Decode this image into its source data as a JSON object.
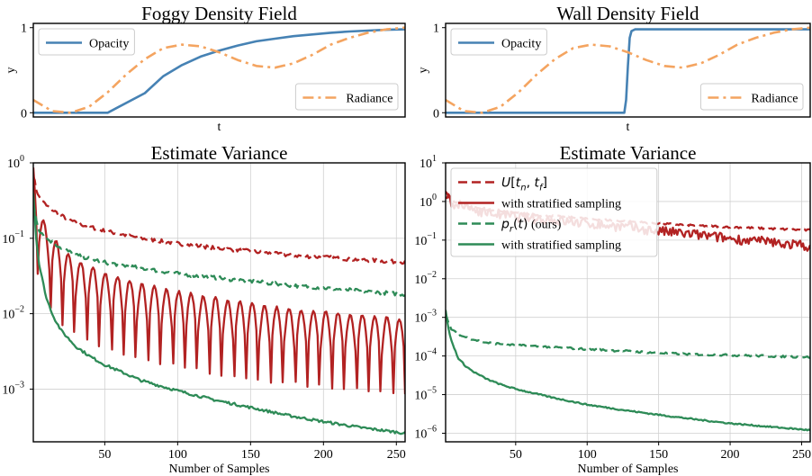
{
  "chart_data": [
    {
      "id": "foggy",
      "type": "line",
      "title": "Foggy Density Field",
      "xlabel": "t",
      "ylabel": "y",
      "xlim": [
        0,
        1
      ],
      "ylim": [
        -0.05,
        1.05
      ],
      "yticks": [
        "0",
        "1"
      ],
      "xticks": [],
      "grid": false,
      "legends": [
        {
          "placement": "upper-left",
          "entries": [
            {
              "series": 0,
              "label": "Opacity"
            }
          ]
        },
        {
          "placement": "lower-right",
          "entries": [
            {
              "series": 1,
              "label": "Radiance"
            }
          ]
        }
      ],
      "series": [
        {
          "name": "Opacity",
          "color": "#4682b4",
          "style": "solid",
          "x": [
            0,
            0.1,
            0.2,
            0.3,
            0.35,
            0.4,
            0.45,
            0.5,
            0.55,
            0.6,
            0.65,
            0.7,
            0.75,
            0.8,
            0.85,
            0.9,
            0.95,
            1.0
          ],
          "y": [
            0,
            0,
            0,
            0.23,
            0.43,
            0.56,
            0.66,
            0.73,
            0.79,
            0.84,
            0.87,
            0.9,
            0.92,
            0.94,
            0.955,
            0.965,
            0.975,
            0.98
          ]
        },
        {
          "name": "Radiance",
          "color": "#f4a460",
          "style": "dashdot",
          "x": [
            0,
            0.05,
            0.1,
            0.15,
            0.2,
            0.25,
            0.3,
            0.35,
            0.4,
            0.45,
            0.5,
            0.55,
            0.6,
            0.65,
            0.7,
            0.75,
            0.8,
            0.85,
            0.9,
            0.95,
            1.0
          ],
          "y": [
            0.15,
            0.02,
            0.0,
            0.07,
            0.24,
            0.45,
            0.63,
            0.76,
            0.8,
            0.78,
            0.71,
            0.62,
            0.55,
            0.53,
            0.58,
            0.68,
            0.8,
            0.88,
            0.94,
            0.98,
            1.0
          ]
        }
      ]
    },
    {
      "id": "wall",
      "type": "line",
      "title": "Wall Density Field",
      "xlabel": "t",
      "ylabel": "y",
      "xlim": [
        0,
        1
      ],
      "ylim": [
        -0.05,
        1.05
      ],
      "yticks": [
        "0",
        "1"
      ],
      "xticks": [],
      "grid": false,
      "legends": [
        {
          "placement": "upper-left",
          "entries": [
            {
              "series": 0,
              "label": "Opacity"
            }
          ]
        },
        {
          "placement": "lower-right",
          "entries": [
            {
              "series": 1,
              "label": "Radiance"
            }
          ]
        }
      ],
      "series": [
        {
          "name": "Opacity",
          "color": "#4682b4",
          "style": "solid",
          "x": [
            0,
            0.49,
            0.495,
            0.5,
            0.505,
            0.51,
            0.52,
            1.0
          ],
          "y": [
            0,
            0,
            0.15,
            0.55,
            0.88,
            0.96,
            0.98,
            0.98
          ]
        },
        {
          "name": "Radiance",
          "color": "#f4a460",
          "style": "dashdot",
          "x": [
            0,
            0.05,
            0.1,
            0.15,
            0.2,
            0.25,
            0.3,
            0.35,
            0.4,
            0.45,
            0.5,
            0.55,
            0.6,
            0.65,
            0.7,
            0.75,
            0.8,
            0.85,
            0.9,
            0.95,
            1.0
          ],
          "y": [
            0.15,
            0.02,
            0.0,
            0.07,
            0.24,
            0.45,
            0.63,
            0.76,
            0.8,
            0.78,
            0.71,
            0.62,
            0.55,
            0.53,
            0.58,
            0.68,
            0.8,
            0.88,
            0.94,
            0.98,
            1.0
          ]
        }
      ]
    },
    {
      "id": "var-foggy",
      "type": "line",
      "title": "Estimate Variance",
      "xlabel": "Number of Samples",
      "ylabel": "",
      "yscale": "log",
      "xlim": [
        1,
        256
      ],
      "ylim": [
        0.0002,
        1.0
      ],
      "xticks": [
        50,
        100,
        150,
        200,
        250
      ],
      "yticks": [
        {
          "exp": 0,
          "v": 1
        },
        {
          "exp": -1,
          "v": 0.1
        },
        {
          "exp": -2,
          "v": 0.01
        },
        {
          "exp": -3,
          "v": 0.001
        }
      ],
      "grid": true,
      "series": [
        {
          "name": "U[t_n, t_f]",
          "color": "#b22222",
          "style": "dashed",
          "x": [
            1,
            3,
            5,
            10,
            20,
            30,
            50,
            75,
            100,
            125,
            150,
            175,
            200,
            225,
            256
          ],
          "y": [
            0.7,
            0.45,
            0.35,
            0.27,
            0.2,
            0.16,
            0.125,
            0.1,
            0.085,
            0.075,
            0.067,
            0.06,
            0.056,
            0.052,
            0.048
          ]
        },
        {
          "name": "with stratified sampling",
          "color": "#b22222",
          "style": "solid",
          "x": [
            1,
            3,
            5,
            10,
            20,
            30,
            50,
            75,
            100,
            125,
            150,
            175,
            200,
            225,
            256
          ],
          "y": [
            0.75,
            0.35,
            0.2,
            0.11,
            0.06,
            0.042,
            0.028,
            0.02,
            0.016,
            0.013,
            0.011,
            0.0095,
            0.0085,
            0.0078,
            0.0068
          ]
        },
        {
          "name": "p_r(t) (ours)",
          "color": "#2e8b57",
          "style": "dashed",
          "x": [
            1,
            3,
            5,
            10,
            20,
            30,
            50,
            75,
            100,
            125,
            150,
            175,
            200,
            225,
            256
          ],
          "y": [
            0.3,
            0.18,
            0.13,
            0.1,
            0.075,
            0.06,
            0.048,
            0.04,
            0.034,
            0.03,
            0.027,
            0.024,
            0.022,
            0.02,
            0.018
          ]
        },
        {
          "name": "with stratified sampling",
          "color": "#2e8b57",
          "style": "solid",
          "x": [
            1,
            3,
            5,
            10,
            15,
            20,
            30,
            40,
            50,
            75,
            100,
            125,
            150,
            175,
            200,
            225,
            256
          ],
          "y": [
            0.4,
            0.1,
            0.045,
            0.016,
            0.009,
            0.006,
            0.0037,
            0.0027,
            0.0021,
            0.0013,
            0.00095,
            0.00072,
            0.00057,
            0.00045,
            0.00037,
            0.00031,
            0.00026
          ]
        }
      ]
    },
    {
      "id": "var-wall",
      "type": "line",
      "title": "Estimate Variance",
      "xlabel": "Number of Samples",
      "ylabel": "",
      "yscale": "log",
      "xlim": [
        1,
        256
      ],
      "ylim": [
        6e-07,
        10
      ],
      "xticks": [
        50,
        100,
        150,
        200,
        250
      ],
      "yticks": [
        {
          "exp": 1,
          "v": 10
        },
        {
          "exp": 0,
          "v": 1
        },
        {
          "exp": -1,
          "v": 0.1
        },
        {
          "exp": -2,
          "v": 0.01
        },
        {
          "exp": -3,
          "v": 0.001
        },
        {
          "exp": -4,
          "v": 0.0001
        },
        {
          "exp": -5,
          "v": 1e-05
        },
        {
          "exp": -6,
          "v": 1e-06
        }
      ],
      "grid": true,
      "legends": [
        {
          "placement": "upper-left",
          "entries": [
            {
              "series": 0,
              "label": "U[tn, tf]",
              "math": "U"
            },
            {
              "series": 1,
              "label": "with stratified sampling"
            },
            {
              "series": 2,
              "label": "pr(t) (ours)",
              "math": "p"
            },
            {
              "series": 3,
              "label": "with stratified sampling"
            }
          ]
        }
      ],
      "series": [
        {
          "name": "U[t_n, t_f]",
          "color": "#b22222",
          "style": "dashed",
          "x": [
            1,
            3,
            5,
            10,
            20,
            30,
            50,
            75,
            100,
            125,
            150,
            175,
            200,
            225,
            256
          ],
          "y": [
            1.8,
            1.4,
            1.1,
            0.9,
            0.7,
            0.6,
            0.5,
            0.42,
            0.36,
            0.31,
            0.27,
            0.24,
            0.22,
            0.2,
            0.18
          ]
        },
        {
          "name": "with stratified sampling",
          "color": "#b22222",
          "style": "solid",
          "x": [
            1,
            3,
            5,
            10,
            20,
            30,
            50,
            75,
            100,
            125,
            150,
            175,
            200,
            225,
            256
          ],
          "y": [
            1.5,
            1.2,
            0.95,
            0.8,
            0.62,
            0.52,
            0.4,
            0.33,
            0.27,
            0.22,
            0.17,
            0.14,
            0.11,
            0.09,
            0.07
          ]
        },
        {
          "name": "p_r(t) (ours)",
          "color": "#2e8b57",
          "style": "dashed",
          "x": [
            1,
            3,
            5,
            10,
            20,
            30,
            50,
            75,
            100,
            125,
            150,
            175,
            200,
            225,
            256
          ],
          "y": [
            0.0012,
            0.0007,
            0.0005,
            0.00035,
            0.00027,
            0.00022,
            0.00019,
            0.00017,
            0.00015,
            0.000135,
            0.00012,
            0.00011,
            0.000105,
            0.0001,
            9.3e-05
          ]
        },
        {
          "name": "with stratified sampling",
          "color": "#2e8b57",
          "style": "solid",
          "x": [
            1,
            3,
            5,
            10,
            15,
            20,
            30,
            40,
            50,
            75,
            100,
            125,
            150,
            175,
            200,
            225,
            256
          ],
          "y": [
            0.0015,
            0.0005,
            0.00025,
            8.5e-05,
            5.5e-05,
            4e-05,
            2.5e-05,
            1.8e-05,
            1.4e-05,
            8.5e-06,
            5.5e-06,
            4e-06,
            3e-06,
            2.3e-06,
            1.8e-06,
            1.5e-06,
            1.2e-06
          ]
        }
      ]
    }
  ]
}
